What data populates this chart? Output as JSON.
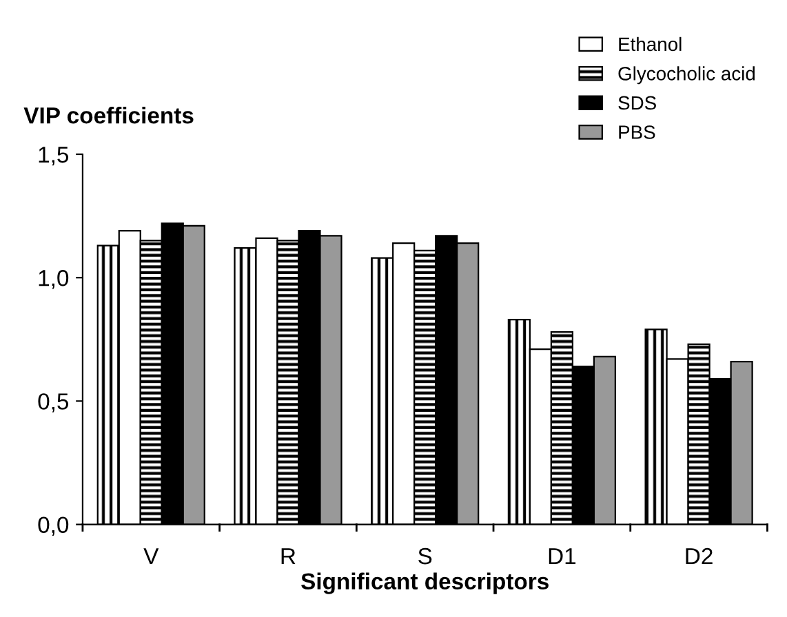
{
  "chart_data": {
    "type": "bar",
    "title": "VIP coefficients",
    "xlabel": "Significant descriptors",
    "categories": [
      "V",
      "R",
      "S",
      "D1",
      "D2"
    ],
    "series": [
      {
        "color": "#000000",
        "values": [
          1.13,
          1.12,
          1.08,
          0.83,
          0.79
        ]
      },
      {
        "name": "Ethanol",
        "color": "#ffffff",
        "values": [
          1.19,
          1.16,
          1.14,
          0.71,
          0.67
        ]
      },
      {
        "name": "Glycocholic acid",
        "color": "#000000",
        "values": [
          1.15,
          1.15,
          1.11,
          0.78,
          0.73
        ]
      },
      {
        "name": "SDS",
        "color": "#000000",
        "values": [
          1.22,
          1.19,
          1.17,
          0.64,
          0.59
        ]
      },
      {
        "name": "PBS",
        "color": "#999999",
        "values": [
          1.21,
          1.17,
          1.14,
          0.68,
          0.66
        ]
      }
    ],
    "ylim": [
      0,
      1.5
    ],
    "yticks": [
      {
        "value": 0,
        "label": "0,0"
      },
      {
        "value": 0.5,
        "label": "0,5"
      },
      {
        "value": 1.0,
        "label": "1,0"
      },
      {
        "value": 1.5,
        "label": "1,5"
      }
    ],
    "grid": false,
    "legend": "top right"
  }
}
